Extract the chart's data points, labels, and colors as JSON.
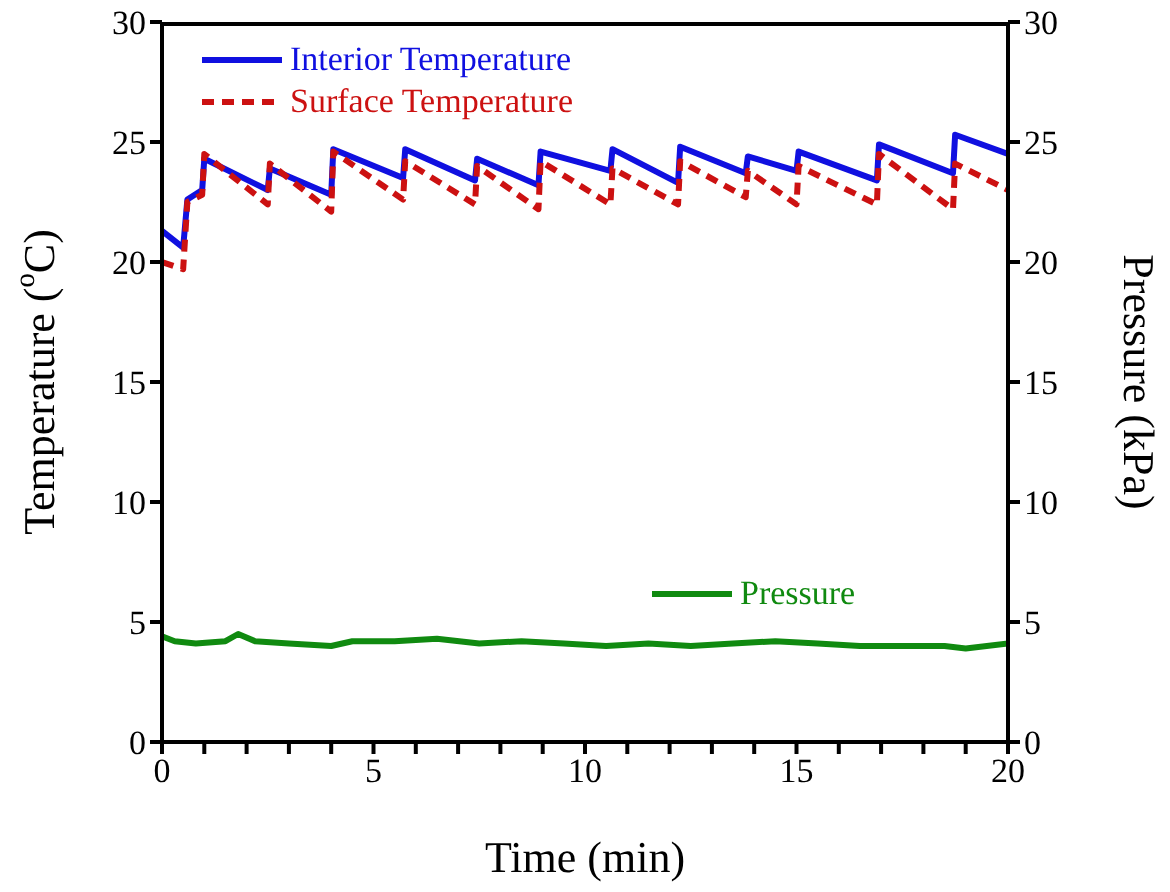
{
  "chart_data": {
    "type": "line",
    "xlabel": "Time (min)",
    "ylabel": "Temperature ($^{o}$C)",
    "y2label": "Pressure (kPa)",
    "xlim": [
      0,
      20
    ],
    "xticks": [
      0,
      {
        "value": 1,
        "label": null
      },
      {
        "value": 2,
        "label": null
      },
      {
        "value": 3,
        "label": null
      },
      {
        "value": 4,
        "label": null
      },
      5,
      {
        "value": 6,
        "label": null
      },
      {
        "value": 7,
        "label": null
      },
      {
        "value": 8,
        "label": null
      },
      {
        "value": 9,
        "label": null
      },
      10,
      {
        "value": 11,
        "label": null
      },
      {
        "value": 12,
        "label": null
      },
      {
        "value": 13,
        "label": null
      },
      {
        "value": 14,
        "label": null
      },
      15,
      {
        "value": 16,
        "label": null
      },
      {
        "value": 17,
        "label": null
      },
      {
        "value": 18,
        "label": null
      },
      {
        "value": 19,
        "label": null
      },
      20
    ],
    "ylim": [
      0,
      30
    ],
    "yticks": [
      0,
      5,
      10,
      15,
      20,
      25,
      30
    ],
    "y2lim": [
      0,
      30
    ],
    "y2ticks": [
      0,
      5,
      10,
      15,
      20,
      25,
      30
    ],
    "legend": "top left",
    "series": [
      {
        "name": "Interior Temperature",
        "color": "#1010e0",
        "line_style": "solid",
        "x": [
          0,
          0.5,
          0.6,
          0.95,
          1.0,
          2.5,
          2.55,
          4.0,
          4.05,
          5.7,
          5.75,
          7.4,
          7.45,
          8.9,
          8.95,
          10.6,
          10.65,
          12.2,
          12.25,
          13.8,
          13.85,
          15.0,
          15.05,
          16.9,
          16.95,
          18.7,
          18.75,
          20
        ],
        "values": [
          21.3,
          20.6,
          22.6,
          23.0,
          24.3,
          23.0,
          23.9,
          22.8,
          24.7,
          23.5,
          24.7,
          23.4,
          24.3,
          23.2,
          24.6,
          23.8,
          24.7,
          23.3,
          24.8,
          23.7,
          24.4,
          23.8,
          24.6,
          23.4,
          24.9,
          23.7,
          25.3,
          24.5
        ]
      },
      {
        "name": "Surface Temperature",
        "color": "#cc1111",
        "line_style": "dashed",
        "x": [
          0,
          0.5,
          0.6,
          0.95,
          1.0,
          2.5,
          2.55,
          4.0,
          4.05,
          5.7,
          5.75,
          7.4,
          7.45,
          8.9,
          8.95,
          10.6,
          10.65,
          12.2,
          12.25,
          13.8,
          13.85,
          15.0,
          15.05,
          16.9,
          16.95,
          18.7,
          18.75,
          20
        ],
        "values": [
          20.0,
          19.7,
          22.5,
          22.8,
          24.5,
          22.4,
          24.1,
          22.1,
          24.6,
          22.6,
          24.2,
          22.4,
          24.0,
          22.2,
          24.2,
          22.4,
          23.9,
          22.4,
          24.2,
          22.7,
          23.8,
          22.4,
          24.0,
          22.4,
          24.5,
          22.2,
          24.1,
          23.0
        ]
      },
      {
        "name": "Pressure",
        "color": "#108a10",
        "line_style": "solid",
        "axis": "y2",
        "x": [
          0,
          0.3,
          0.8,
          1.5,
          1.8,
          2.2,
          3,
          4,
          4.5,
          5.5,
          6.5,
          7.5,
          8.5,
          9.5,
          10.5,
          11.5,
          12.5,
          13.5,
          14.5,
          15.5,
          16.5,
          17.5,
          18.5,
          19,
          20
        ],
        "values": [
          4.4,
          4.2,
          4.1,
          4.2,
          4.5,
          4.2,
          4.1,
          4.0,
          4.2,
          4.2,
          4.3,
          4.1,
          4.2,
          4.1,
          4.0,
          4.1,
          4.0,
          4.1,
          4.2,
          4.1,
          4.0,
          4.0,
          4.0,
          3.9,
          4.1
        ]
      }
    ]
  }
}
